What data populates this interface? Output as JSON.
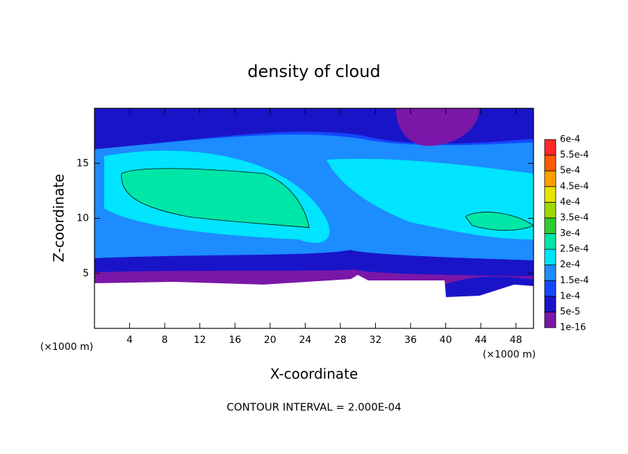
{
  "chart_data": {
    "type": "contour",
    "title": "density of cloud",
    "x_label": "X-coordinate",
    "y_label": "Z-coordinate",
    "x_unit": "(×1000 m)",
    "y_unit": "(×1000 m)",
    "footer": "CONTOUR INTERVAL = 2.000E-04",
    "xlim": [
      0,
      50
    ],
    "ylim": [
      0,
      20
    ],
    "xticks": [
      4,
      8,
      12,
      16,
      20,
      24,
      28,
      32,
      36,
      40,
      44,
      48
    ],
    "yticks": [
      5,
      10,
      15
    ],
    "colorbar": {
      "levels": [
        {
          "value": 1e-16,
          "label": "1e-16"
        },
        {
          "value": 5e-05,
          "label": "5e-5"
        },
        {
          "value": 0.0001,
          "label": "1e-4"
        },
        {
          "value": 0.00015,
          "label": "1.5e-4"
        },
        {
          "value": 0.0002,
          "label": "2e-4"
        },
        {
          "value": 0.00025,
          "label": "2.5e-4"
        },
        {
          "value": 0.0003,
          "label": "3e-4"
        },
        {
          "value": 0.00035,
          "label": "3.5e-4"
        },
        {
          "value": 0.0004,
          "label": "4e-4"
        },
        {
          "value": 0.00045,
          "label": "4.5e-4"
        },
        {
          "value": 0.0005,
          "label": "5e-4"
        },
        {
          "value": 0.00055,
          "label": "5.5e-4"
        },
        {
          "value": 0.0006,
          "label": "6e-4"
        }
      ],
      "colors": [
        "#7a17a8",
        "#1a14c8",
        "#1448ff",
        "#1c8cff",
        "#00e4ff",
        "#00e6a6",
        "#2ecc30",
        "#9ed800",
        "#e8e400",
        "#ffa000",
        "#ff5a00",
        "#ff2828"
      ]
    }
  }
}
